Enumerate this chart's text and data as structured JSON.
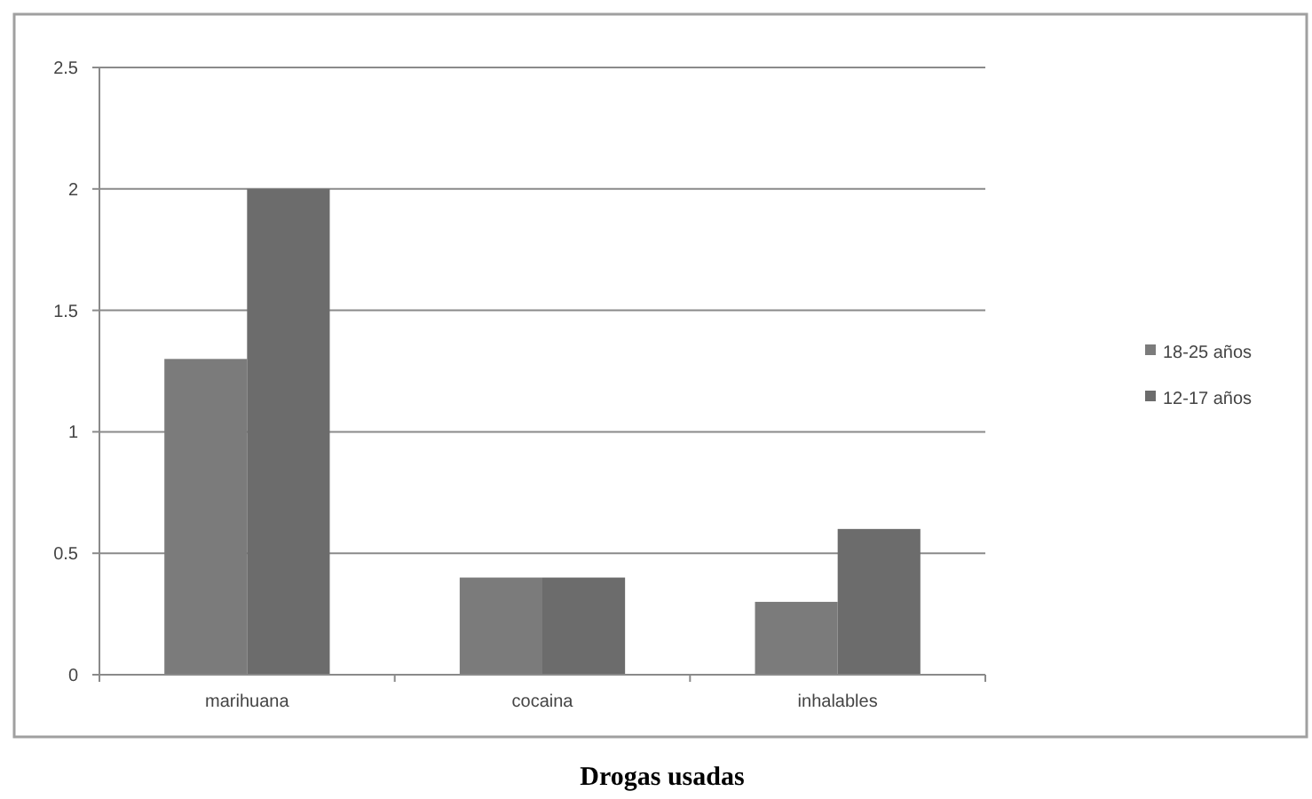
{
  "chart_data": {
    "type": "bar",
    "xlabel": "Drogas usadas",
    "categories": [
      "marihuana",
      "cocaina",
      "inhalables"
    ],
    "series": [
      {
        "name": "18-25 años",
        "color": "#7b7b7b",
        "values": [
          1.3,
          0.4,
          0.3
        ]
      },
      {
        "name": "12-17 años",
        "color": "#6c6c6c",
        "values": [
          2,
          0.4,
          0.6
        ]
      }
    ],
    "ylim": [
      0,
      2.5
    ],
    "yticks": [
      0,
      0.5,
      1,
      1.5,
      2,
      2.5
    ],
    "grid": "y",
    "legend": "right"
  }
}
